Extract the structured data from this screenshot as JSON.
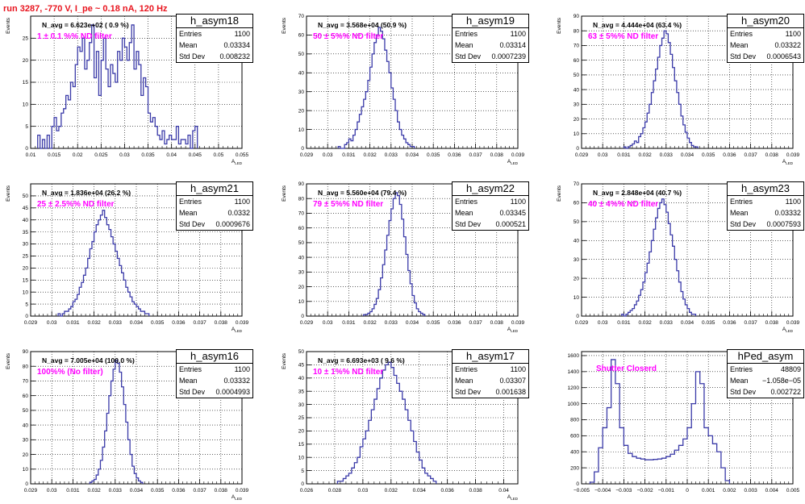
{
  "header": {
    "run_label": "run 3287,  -770 V, I_pe ~ 0.18 nA, 120 Hz"
  },
  "stat_labels": {
    "entries": "Entries",
    "mean": "Mean",
    "std_dev": "Std Dev"
  },
  "colors": {
    "histogram_line": "#3a3aa8",
    "filter_text": "#ff00ff",
    "run_text": "#e8141e"
  },
  "chart_data": [
    {
      "type": "histogram",
      "name": "h_asym18",
      "stats": {
        "entries": "1100",
        "mean": "0.03334",
        "std_dev": "0.008232"
      },
      "annotation": "N_avg = 6.623e+02 ( 0.9 %)",
      "filter_label": "1 ± 0.1 %% ND filter",
      "xlabel": "A_LED",
      "ylabel": "Events",
      "xlim": [
        0.01,
        0.055
      ],
      "ylim": [
        0,
        30
      ],
      "xticks": [
        "0.01",
        "0.015",
        "0.02",
        "0.025",
        "0.03",
        "0.035",
        "0.04",
        "0.045",
        "0.05",
        "0.055"
      ],
      "yticks": [
        "0",
        "5",
        "10",
        "15",
        "20",
        "25"
      ],
      "bins": {
        "start": 0.0115,
        "width": 0.0005,
        "counts": [
          3,
          0,
          2,
          0,
          3,
          0,
          5,
          7,
          4,
          5,
          8,
          9,
          12,
          11,
          15,
          14,
          19,
          23,
          22,
          25,
          18,
          20,
          24,
          28,
          16,
          22,
          12,
          20,
          25,
          18,
          14,
          19,
          17,
          15,
          22,
          20,
          25,
          23,
          20,
          24,
          28,
          18,
          22,
          19,
          12,
          16,
          14,
          8,
          6,
          7,
          5,
          3,
          2,
          4,
          1,
          2,
          3,
          2,
          2,
          5,
          1,
          2,
          2,
          1,
          3,
          0,
          4,
          5
        ]
      }
    },
    {
      "type": "histogram",
      "name": "h_asym19",
      "stats": {
        "entries": "1100",
        "mean": "0.03314",
        "std_dev": "0.0007239"
      },
      "annotation": "N_avg = 3.568e+04 (50.9 %)",
      "filter_label": "50 ± 5%% ND filter",
      "xlabel": "A_LED",
      "ylabel": "Events",
      "xlim": [
        0.029,
        0.039
      ],
      "ylim": [
        0,
        70
      ],
      "xticks": [
        "0.029",
        "0.03",
        "0.031",
        "0.032",
        "0.033",
        "0.034",
        "0.035",
        "0.036",
        "0.037",
        "0.038",
        "0.039"
      ],
      "yticks": [
        "0",
        "10",
        "20",
        "30",
        "40",
        "50",
        "60",
        "70"
      ],
      "bins": {
        "start": 0.0305,
        "width": 0.0001,
        "counts": [
          1,
          0,
          0,
          2,
          3,
          5,
          4,
          7,
          10,
          14,
          18,
          22,
          26,
          30,
          36,
          43,
          50,
          56,
          60,
          64,
          62,
          58,
          52,
          46,
          40,
          32,
          26,
          20,
          14,
          10,
          7,
          5,
          3,
          2,
          1,
          1
        ]
      }
    },
    {
      "type": "histogram",
      "name": "h_asym20",
      "stats": {
        "entries": "1100",
        "mean": "0.03322",
        "std_dev": "0.0006543"
      },
      "annotation": "N_avg = 4.444e+04 (63.4 %)",
      "filter_label": "63 ± 5%% ND filter",
      "xlabel": "A_LED",
      "ylabel": "Events",
      "xlim": [
        0.029,
        0.039
      ],
      "ylim": [
        0,
        90
      ],
      "xticks": [
        "0.029",
        "0.03",
        "0.031",
        "0.032",
        "0.033",
        "0.034",
        "0.035",
        "0.036",
        "0.037",
        "0.038",
        "0.039"
      ],
      "yticks": [
        "0",
        "10",
        "20",
        "30",
        "40",
        "50",
        "60",
        "70",
        "80",
        "90"
      ],
      "bins": {
        "start": 0.031,
        "width": 0.0001,
        "counts": [
          1,
          0,
          1,
          2,
          3,
          5,
          4,
          8,
          10,
          14,
          18,
          24,
          30,
          38,
          46,
          54,
          62,
          70,
          75,
          80,
          78,
          72,
          64,
          55,
          46,
          38,
          30,
          22,
          16,
          11,
          7,
          4,
          2,
          1,
          1
        ]
      }
    },
    {
      "type": "histogram",
      "name": "h_asym21",
      "stats": {
        "entries": "1100",
        "mean": "0.0332",
        "std_dev": "0.0009676"
      },
      "annotation": "N_avg = 1.836e+04 (26.2 %)",
      "filter_label": "25 ± 2.5%% ND filter",
      "xlabel": "A_LED",
      "ylabel": "Events",
      "xlim": [
        0.029,
        0.039
      ],
      "ylim": [
        0,
        55
      ],
      "xticks": [
        "0.029",
        "0.03",
        "0.031",
        "0.032",
        "0.033",
        "0.034",
        "0.035",
        "0.036",
        "0.037",
        "0.038",
        "0.039"
      ],
      "yticks": [
        "0",
        "5",
        "10",
        "15",
        "20",
        "25",
        "30",
        "35",
        "40",
        "45",
        "50"
      ],
      "bins": {
        "start": 0.0303,
        "width": 0.0001,
        "counts": [
          1,
          0,
          1,
          2,
          2,
          3,
          4,
          6,
          7,
          9,
          12,
          14,
          17,
          20,
          24,
          28,
          31,
          35,
          38,
          40,
          42,
          44,
          41,
          38,
          36,
          33,
          30,
          27,
          24,
          21,
          18,
          15,
          12,
          10,
          8,
          6,
          5,
          4,
          3,
          2,
          2,
          1,
          1
        ]
      }
    },
    {
      "type": "histogram",
      "name": "h_asym22",
      "stats": {
        "entries": "1100",
        "mean": "0.03345",
        "std_dev": "0.000521"
      },
      "annotation": "N_avg = 5.560e+04 (79.4 %)",
      "filter_label": "79 ± 5%% ND filter",
      "xlabel": "A_LED",
      "ylabel": "Events",
      "xlim": [
        0.029,
        0.039
      ],
      "ylim": [
        0,
        90
      ],
      "xticks": [
        "0.029",
        "0.03",
        "0.031",
        "0.032",
        "0.033",
        "0.034",
        "0.035",
        "0.036",
        "0.037",
        "0.038",
        "0.039"
      ],
      "yticks": [
        "0",
        "10",
        "20",
        "30",
        "40",
        "50",
        "60",
        "70",
        "80",
        "90"
      ],
      "bins": {
        "start": 0.0317,
        "width": 0.0001,
        "counts": [
          1,
          1,
          2,
          3,
          5,
          8,
          12,
          18,
          26,
          35,
          45,
          55,
          65,
          73,
          80,
          84,
          82,
          76,
          66,
          54,
          42,
          31,
          22,
          14,
          9,
          5,
          3,
          2,
          1
        ]
      }
    },
    {
      "type": "histogram",
      "name": "h_asym23",
      "stats": {
        "entries": "1100",
        "mean": "0.03332",
        "std_dev": "0.0007593"
      },
      "annotation": "N_avg = 2.848e+04 (40.7 %)",
      "filter_label": "40 ± 4%% ND filter",
      "xlabel": "A_LED",
      "ylabel": "Events",
      "xlim": [
        0.029,
        0.039
      ],
      "ylim": [
        0,
        70
      ],
      "xticks": [
        "0.029",
        "0.03",
        "0.031",
        "0.032",
        "0.033",
        "0.034",
        "0.035",
        "0.036",
        "0.037",
        "0.038",
        "0.039"
      ],
      "yticks": [
        "0",
        "10",
        "20",
        "30",
        "40",
        "50",
        "60",
        "70"
      ],
      "bins": {
        "start": 0.0309,
        "width": 0.0001,
        "counts": [
          1,
          0,
          1,
          2,
          3,
          4,
          6,
          8,
          11,
          14,
          18,
          23,
          28,
          34,
          40,
          46,
          52,
          57,
          60,
          62,
          59,
          55,
          49,
          43,
          37,
          30,
          24,
          18,
          13,
          9,
          6,
          4,
          2,
          1,
          1
        ]
      }
    },
    {
      "type": "histogram",
      "name": "h_asym16",
      "stats": {
        "entries": "1100",
        "mean": "0.03332",
        "std_dev": "0.0004993"
      },
      "annotation": "N_avg = 7.005e+04 (100.0 %)",
      "filter_label": "100%% (No filter)",
      "xlabel": "A_LED",
      "ylabel": "Events",
      "xlim": [
        0.029,
        0.039
      ],
      "ylim": [
        0,
        90
      ],
      "xticks": [
        "0.029",
        "0.03",
        "0.031",
        "0.032",
        "0.033",
        "0.034",
        "0.035",
        "0.036",
        "0.037",
        "0.038",
        "0.039"
      ],
      "yticks": [
        "0",
        "10",
        "20",
        "30",
        "40",
        "50",
        "60",
        "70",
        "80",
        "90"
      ],
      "bins": {
        "start": 0.0318,
        "width": 0.0001,
        "counts": [
          1,
          2,
          3,
          6,
          10,
          16,
          25,
          36,
          48,
          60,
          70,
          78,
          84,
          82,
          76,
          66,
          54,
          42,
          30,
          20,
          12,
          7,
          4,
          2,
          1
        ]
      }
    },
    {
      "type": "histogram",
      "name": "h_asym17",
      "stats": {
        "entries": "1100",
        "mean": "0.03307",
        "std_dev": "0.001638"
      },
      "annotation": "N_avg = 6.693e+03 ( 9.6 %)",
      "filter_label": "10 ± 1%% ND filter",
      "xlabel": "A_LED",
      "ylabel": "Events",
      "xlim": [
        0.026,
        0.041
      ],
      "ylim": [
        0,
        50
      ],
      "xticks": [
        "0.026",
        "0.028",
        "0.03",
        "0.032",
        "0.034",
        "0.036",
        "0.038",
        "0.04"
      ],
      "yticks": [
        "0",
        "5",
        "10",
        "15",
        "20",
        "25",
        "30",
        "35",
        "40",
        "45",
        "50"
      ],
      "bins": {
        "start": 0.0282,
        "width": 0.0002,
        "counts": [
          1,
          1,
          2,
          3,
          4,
          6,
          8,
          10,
          14,
          17,
          20,
          24,
          28,
          32,
          36,
          40,
          43,
          45,
          46,
          44,
          41,
          38,
          35,
          32,
          28,
          24,
          20,
          16,
          12,
          9,
          6,
          4,
          3,
          2,
          1
        ]
      }
    },
    {
      "type": "histogram",
      "name": "hPed_asym",
      "stats": {
        "entries": "48809",
        "mean": "−1.058e−05",
        "std_dev": "0.002722"
      },
      "annotation": "",
      "filter_label": "Shutter Closerd",
      "xlabel": "",
      "ylabel": "",
      "xlim": [
        -0.005,
        0.005
      ],
      "ylim": [
        0,
        1650
      ],
      "xticks": [
        "−0.005",
        "−0.004",
        "−0.003",
        "−0.002",
        "−0.001",
        "0",
        "0.001",
        "0.002",
        "0.003",
        "0.004",
        "0.005"
      ],
      "yticks": [
        "0",
        "200",
        "400",
        "600",
        "800",
        "1000",
        "1200",
        "1400",
        "1600"
      ],
      "bins": {
        "start": -0.0046,
        "width": 0.0002,
        "counts": [
          20,
          150,
          450,
          700,
          950,
          1550,
          1250,
          700,
          480,
          380,
          340,
          320,
          310,
          300,
          300,
          305,
          310,
          320,
          340,
          370,
          420,
          480,
          560,
          700,
          1000,
          1400,
          1250,
          700,
          600,
          500,
          400,
          200,
          40
        ]
      }
    }
  ]
}
